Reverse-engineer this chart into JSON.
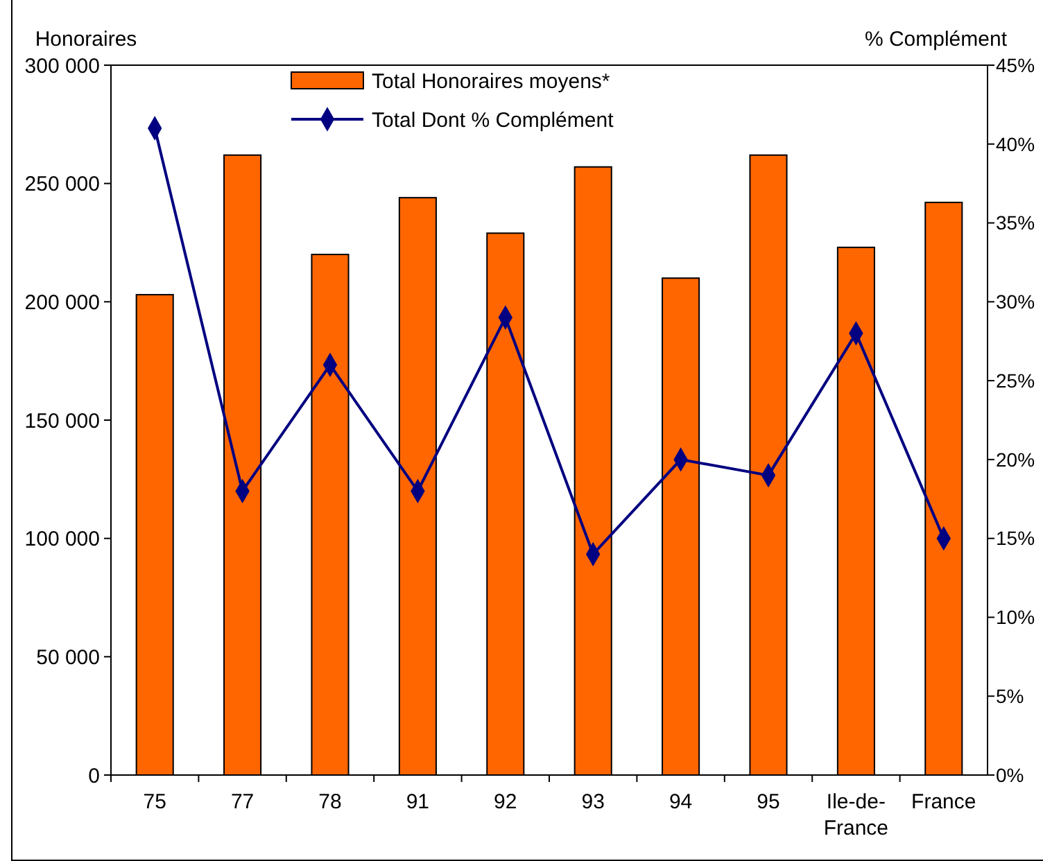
{
  "chart_data": {
    "type": "bar",
    "ylabel": "Honoraires",
    "y2label": "% Complément",
    "categories": [
      "75",
      "77",
      "78",
      "91",
      "92",
      "93",
      "94",
      "95",
      "Ile-de-France",
      "France"
    ],
    "series": [
      {
        "name": "Total Honoraires moyens*",
        "color": "#ff6600",
        "values": [
          203000,
          262000,
          220000,
          244000,
          229000,
          257000,
          210000,
          262000,
          223000,
          242000
        ]
      },
      {
        "name": "Total Dont % Complément",
        "type": "line",
        "axis": "y2",
        "color": "#000080",
        "marker": "diamond",
        "values": [
          41,
          18,
          26,
          18,
          29,
          14,
          20,
          19,
          28,
          15
        ]
      }
    ],
    "ylim": [
      0,
      300000
    ],
    "yticks": [
      {
        "value": 0,
        "label": "0"
      },
      {
        "value": 50000,
        "label": "50 000"
      },
      {
        "value": 100000,
        "label": "100 000"
      },
      {
        "value": 150000,
        "label": "150 000"
      },
      {
        "value": 200000,
        "label": "200 000"
      },
      {
        "value": 250000,
        "label": "250 000"
      },
      {
        "value": 300000,
        "label": "300 000"
      }
    ],
    "y2lim": [
      0,
      45
    ],
    "y2ticks": [
      {
        "value": 0,
        "label": "0%"
      },
      {
        "value": 5,
        "label": "5%"
      },
      {
        "value": 10,
        "label": "10%"
      },
      {
        "value": 15,
        "label": "15%"
      },
      {
        "value": 20,
        "label": "20%"
      },
      {
        "value": 25,
        "label": "25%"
      },
      {
        "value": 30,
        "label": "30%"
      },
      {
        "value": 35,
        "label": "35%"
      },
      {
        "value": 40,
        "label": "40%"
      },
      {
        "value": 45,
        "label": "45%"
      }
    ],
    "legend": "top",
    "grid": false
  }
}
